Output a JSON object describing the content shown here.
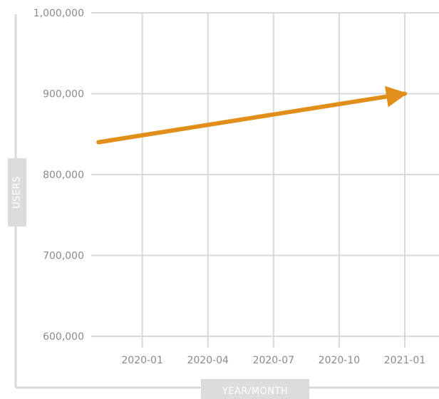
{
  "chart_data": {
    "type": "line",
    "xlabel": "YEAR/MONTH",
    "ylabel": "USERS",
    "x_ticks": [
      "2020-01",
      "2020-04",
      "2020-07",
      "2020-10",
      "2021-01"
    ],
    "y_ticks": [
      "600,000",
      "700,000",
      "800,000",
      "900,000",
      "1,000,000"
    ],
    "y_tick_values": [
      600000,
      700000,
      800000,
      900000,
      1000000
    ],
    "ylim": [
      600000,
      1000000
    ],
    "xlim": [
      "2019-10-21",
      "2021-01"
    ],
    "grid": true,
    "legend": "none",
    "series": [
      {
        "color": "#e08f1a",
        "marker_end": "arrow",
        "points": [
          {
            "x": "2019-11",
            "y": 840000
          },
          {
            "x": "2021-01",
            "y": 900000
          }
        ]
      }
    ],
    "colors": {
      "grid": "#d9d9d9",
      "axis_title_bg": "#dcdcdc",
      "tick_label": "#8a8a8a",
      "line": "#e08f1a"
    }
  }
}
